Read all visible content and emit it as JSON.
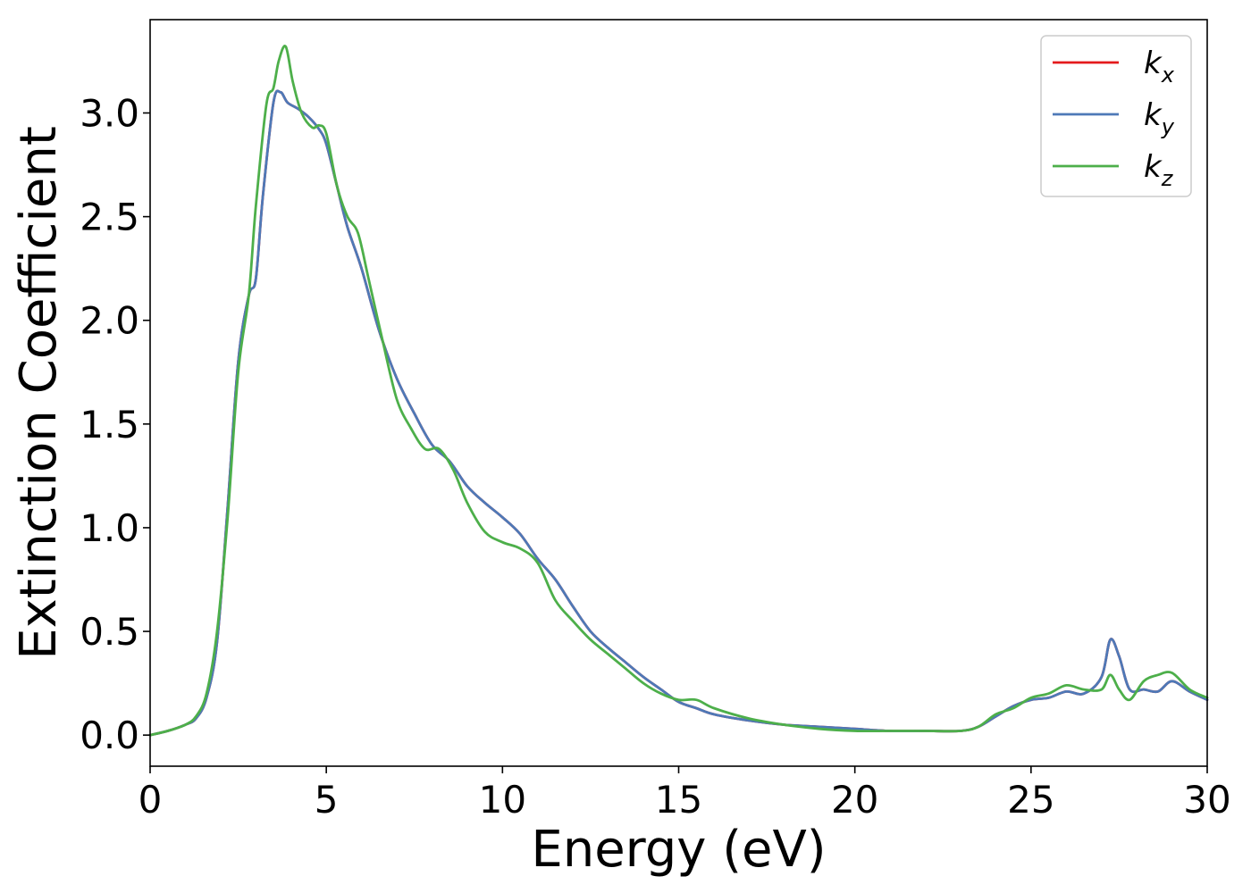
{
  "chart_data": {
    "type": "line",
    "xlabel": "Energy (eV)",
    "ylabel": "Extinction Coefficient",
    "xlim": [
      0,
      30
    ],
    "ylim": [
      -0.15,
      3.45
    ],
    "xticks": [
      0,
      5,
      10,
      15,
      20,
      25,
      30
    ],
    "xtick_labels": [
      "0",
      "5",
      "10",
      "15",
      "20",
      "25",
      "30"
    ],
    "yticks": [
      0.0,
      0.5,
      1.0,
      1.5,
      2.0,
      2.5,
      3.0
    ],
    "ytick_labels": [
      "0.0",
      "0.5",
      "1.0",
      "1.5",
      "2.0",
      "2.5",
      "3.0"
    ],
    "grid": false,
    "legend_position": "top-right",
    "series": [
      {
        "name": "k_x",
        "label_base": "k",
        "label_sub": "x",
        "color": "#e41a1c",
        "x": [
          0,
          0.5,
          1,
          1.3,
          1.6,
          1.9,
          2.2,
          2.5,
          2.8,
          3.0,
          3.2,
          3.5,
          3.7,
          3.9,
          4.2,
          4.5,
          4.8,
          5.0,
          5.3,
          5.6,
          6.0,
          6.5,
          7.0,
          7.5,
          8.0,
          8.5,
          9.0,
          9.5,
          10.0,
          10.5,
          11.0,
          11.5,
          12.0,
          12.5,
          13.0,
          13.5,
          14.0,
          14.5,
          15.0,
          15.5,
          16.0,
          17.0,
          18.0,
          19.0,
          20.0,
          21.0,
          22.0,
          23.0,
          23.5,
          24.0,
          24.5,
          25.0,
          25.5,
          26.0,
          26.5,
          27.0,
          27.25,
          27.5,
          27.8,
          28.2,
          28.6,
          29.0,
          29.5,
          30.0
        ],
        "y": [
          0.0,
          0.02,
          0.05,
          0.08,
          0.18,
          0.45,
          1.1,
          1.8,
          2.12,
          2.2,
          2.6,
          3.05,
          3.1,
          3.05,
          3.02,
          2.98,
          2.92,
          2.85,
          2.65,
          2.45,
          2.25,
          1.95,
          1.72,
          1.55,
          1.4,
          1.32,
          1.2,
          1.12,
          1.05,
          0.97,
          0.85,
          0.75,
          0.62,
          0.5,
          0.42,
          0.35,
          0.28,
          0.22,
          0.16,
          0.13,
          0.1,
          0.07,
          0.05,
          0.04,
          0.03,
          0.02,
          0.02,
          0.02,
          0.04,
          0.09,
          0.14,
          0.17,
          0.18,
          0.21,
          0.2,
          0.28,
          0.46,
          0.38,
          0.22,
          0.22,
          0.21,
          0.26,
          0.21,
          0.17
        ]
      },
      {
        "name": "k_y",
        "label_base": "k",
        "label_sub": "y",
        "color": "#4e79b7",
        "x": [
          0,
          0.5,
          1,
          1.3,
          1.6,
          1.9,
          2.2,
          2.5,
          2.8,
          3.0,
          3.2,
          3.5,
          3.7,
          3.9,
          4.2,
          4.5,
          4.8,
          5.0,
          5.3,
          5.6,
          6.0,
          6.5,
          7.0,
          7.5,
          8.0,
          8.5,
          9.0,
          9.5,
          10.0,
          10.5,
          11.0,
          11.5,
          12.0,
          12.5,
          13.0,
          13.5,
          14.0,
          14.5,
          15.0,
          15.5,
          16.0,
          17.0,
          18.0,
          19.0,
          20.0,
          21.0,
          22.0,
          23.0,
          23.5,
          24.0,
          24.5,
          25.0,
          25.5,
          26.0,
          26.5,
          27.0,
          27.25,
          27.5,
          27.8,
          28.2,
          28.6,
          29.0,
          29.5,
          30.0
        ],
        "y": [
          0.0,
          0.02,
          0.05,
          0.08,
          0.18,
          0.45,
          1.1,
          1.8,
          2.12,
          2.2,
          2.6,
          3.05,
          3.1,
          3.05,
          3.02,
          2.98,
          2.92,
          2.85,
          2.65,
          2.45,
          2.25,
          1.95,
          1.72,
          1.55,
          1.4,
          1.32,
          1.2,
          1.12,
          1.05,
          0.97,
          0.85,
          0.75,
          0.62,
          0.5,
          0.42,
          0.35,
          0.28,
          0.22,
          0.16,
          0.13,
          0.1,
          0.07,
          0.05,
          0.04,
          0.03,
          0.02,
          0.02,
          0.02,
          0.04,
          0.09,
          0.14,
          0.17,
          0.18,
          0.21,
          0.2,
          0.28,
          0.46,
          0.38,
          0.22,
          0.22,
          0.21,
          0.26,
          0.21,
          0.17
        ]
      },
      {
        "name": "k_z",
        "label_base": "k",
        "label_sub": "z",
        "color": "#4daf4a",
        "x": [
          0,
          0.5,
          1,
          1.3,
          1.6,
          1.9,
          2.2,
          2.5,
          2.8,
          3.0,
          3.3,
          3.5,
          3.65,
          3.85,
          4.05,
          4.3,
          4.6,
          4.8,
          5.0,
          5.3,
          5.6,
          5.9,
          6.2,
          6.6,
          7.0,
          7.4,
          7.8,
          8.2,
          8.6,
          9.0,
          9.5,
          10.0,
          10.5,
          11.0,
          11.5,
          12.0,
          12.5,
          13.0,
          13.5,
          14.0,
          14.5,
          15.0,
          15.5,
          16.0,
          17.0,
          18.0,
          19.0,
          20.0,
          21.0,
          22.0,
          23.0,
          23.5,
          24.0,
          24.5,
          25.0,
          25.5,
          26.0,
          26.5,
          27.0,
          27.25,
          27.5,
          27.8,
          28.2,
          28.6,
          29.0,
          29.5,
          30.0
        ],
        "y": [
          0.0,
          0.02,
          0.05,
          0.09,
          0.2,
          0.5,
          1.05,
          1.75,
          2.12,
          2.55,
          3.04,
          3.12,
          3.25,
          3.32,
          3.15,
          3.0,
          2.93,
          2.94,
          2.9,
          2.65,
          2.5,
          2.42,
          2.2,
          1.9,
          1.62,
          1.48,
          1.38,
          1.38,
          1.28,
          1.12,
          0.98,
          0.93,
          0.9,
          0.83,
          0.65,
          0.55,
          0.46,
          0.39,
          0.32,
          0.25,
          0.2,
          0.17,
          0.17,
          0.13,
          0.08,
          0.05,
          0.03,
          0.02,
          0.02,
          0.02,
          0.02,
          0.04,
          0.1,
          0.13,
          0.18,
          0.2,
          0.24,
          0.22,
          0.22,
          0.29,
          0.22,
          0.17,
          0.26,
          0.29,
          0.3,
          0.22,
          0.18
        ]
      }
    ]
  }
}
